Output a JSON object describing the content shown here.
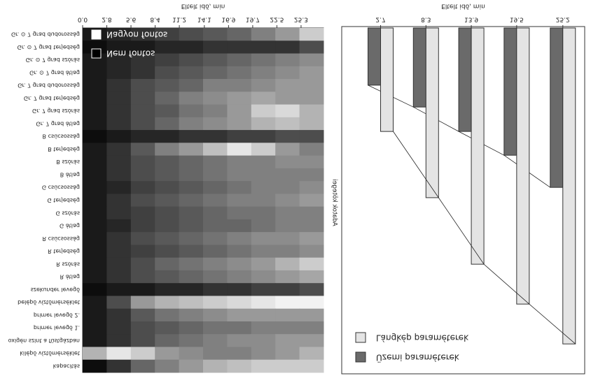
{
  "chart_data": [
    {
      "type": "heatmap",
      "xlabel": "Eltelt idő, min",
      "xlim": [
        0,
        27.9
      ],
      "xticks": [
        {
          "value": 0,
          "label": "0.0"
        },
        2.8,
        5.6,
        8.4,
        11.2,
        14.1,
        16.9,
        19.7,
        22.5,
        25.3
      ],
      "rows": [
        "Gr. ⊙ 7 grad dudorosság",
        "Gr. ⊙ 7 grad terjedség",
        "Gr. ⊙ 7 grad szórás",
        "Gr. ⊙ 7 grad átlag",
        "Gr. 7 grad dudorosság",
        "Gr. 7 grad terjedség",
        "Gr. 7 grad szórás",
        "Gr. 7 grad átlag",
        "B csúcsosság",
        "B terjedség",
        "B szórás",
        "B átlag",
        "G csúcsosság",
        "G terjedség",
        "G szórás",
        "G átlag",
        "R csúcsosság",
        "R terjedség",
        "R szórás",
        "R átlag",
        "szekunder levegő",
        "belépő víztőmérséklet",
        "primer levegő 2.",
        "primer levegő 1.",
        "oxigén szint a füstgázban",
        "kilépő víztőmérséklet",
        "kapacitás"
      ],
      "values": [
        [
          0.1,
          0.15,
          0.2,
          0.25,
          0.3,
          0.35,
          0.4,
          0.5,
          0.6,
          0.8
        ],
        [
          0.05,
          0.1,
          0.1,
          0.15,
          0.15,
          0.2,
          0.2,
          0.2,
          0.2,
          0.3
        ],
        [
          0.1,
          0.15,
          0.2,
          0.25,
          0.3,
          0.35,
          0.4,
          0.45,
          0.5,
          0.55
        ],
        [
          0.1,
          0.15,
          0.2,
          0.3,
          0.35,
          0.4,
          0.45,
          0.5,
          0.55,
          0.6
        ],
        [
          0.1,
          0.2,
          0.3,
          0.35,
          0.4,
          0.5,
          0.5,
          0.55,
          0.6,
          0.6
        ],
        [
          0.1,
          0.2,
          0.3,
          0.4,
          0.5,
          0.55,
          0.6,
          0.65,
          0.6,
          0.6
        ],
        [
          0.1,
          0.2,
          0.3,
          0.35,
          0.45,
          0.5,
          0.6,
          0.8,
          0.85,
          0.7
        ],
        [
          0.1,
          0.2,
          0.3,
          0.4,
          0.5,
          0.55,
          0.6,
          0.7,
          0.75,
          0.7
        ],
        [
          0.05,
          0.1,
          0.15,
          0.15,
          0.2,
          0.2,
          0.25,
          0.25,
          0.3,
          0.3
        ],
        [
          0.1,
          0.2,
          0.35,
          0.5,
          0.6,
          0.75,
          0.9,
          0.8,
          0.6,
          0.5
        ],
        [
          0.1,
          0.2,
          0.3,
          0.35,
          0.4,
          0.45,
          0.5,
          0.5,
          0.55,
          0.55
        ],
        [
          0.1,
          0.2,
          0.3,
          0.35,
          0.4,
          0.45,
          0.5,
          0.5,
          0.5,
          0.5
        ],
        [
          0.1,
          0.15,
          0.25,
          0.3,
          0.35,
          0.4,
          0.45,
          0.5,
          0.5,
          0.55
        ],
        [
          0.1,
          0.2,
          0.3,
          0.35,
          0.4,
          0.45,
          0.5,
          0.5,
          0.55,
          0.6
        ],
        [
          0.1,
          0.2,
          0.25,
          0.3,
          0.35,
          0.4,
          0.45,
          0.45,
          0.5,
          0.5
        ],
        [
          0.1,
          0.15,
          0.25,
          0.3,
          0.35,
          0.4,
          0.4,
          0.45,
          0.5,
          0.5
        ],
        [
          0.1,
          0.2,
          0.3,
          0.35,
          0.4,
          0.45,
          0.5,
          0.55,
          0.55,
          0.6
        ],
        [
          0.1,
          0.2,
          0.25,
          0.3,
          0.35,
          0.4,
          0.45,
          0.5,
          0.5,
          0.55
        ],
        [
          0.1,
          0.2,
          0.3,
          0.4,
          0.45,
          0.5,
          0.55,
          0.6,
          0.7,
          0.8
        ],
        [
          0.1,
          0.2,
          0.3,
          0.35,
          0.4,
          0.45,
          0.5,
          0.55,
          0.6,
          0.65
        ],
        [
          0.05,
          0.1,
          0.1,
          0.15,
          0.15,
          0.2,
          0.2,
          0.25,
          0.25,
          0.3
        ],
        [
          0.1,
          0.3,
          0.6,
          0.7,
          0.75,
          0.8,
          0.85,
          0.9,
          0.95,
          0.95
        ],
        [
          0.1,
          0.2,
          0.35,
          0.45,
          0.5,
          0.55,
          0.6,
          0.6,
          0.6,
          0.6
        ],
        [
          0.1,
          0.2,
          0.3,
          0.35,
          0.4,
          0.45,
          0.45,
          0.5,
          0.5,
          0.5
        ],
        [
          0.1,
          0.2,
          0.3,
          0.4,
          0.45,
          0.5,
          0.55,
          0.55,
          0.6,
          0.6
        ],
        [
          0.7,
          0.9,
          0.8,
          0.6,
          0.55,
          0.5,
          0.5,
          0.55,
          0.6,
          0.7
        ],
        [
          0.05,
          0.2,
          0.4,
          0.5,
          0.6,
          0.7,
          0.75,
          0.8,
          0.8,
          0.8
        ]
      ],
      "legend": [
        {
          "label": "Nagyon fontos",
          "color": "#ffffff"
        },
        {
          "label": "Nem fontos",
          "color": "#000000"
        }
      ]
    },
    {
      "type": "bar",
      "xlabel": "Eltelt idő, min",
      "ylabel": "Adatok kötegei",
      "x": [
        2.7,
        8.3,
        13.9,
        19.5,
        25.2
      ],
      "xlim": [
        -2.1,
        27.9
      ],
      "xticks": [
        2.7,
        8.3,
        13.9,
        19.5,
        25.2
      ],
      "ylim": [
        0,
        107.6
      ],
      "y_inverted": true,
      "series": [
        {
          "name": "Üzemi paraméterek",
          "color": "#6a6a6a",
          "values": [
            17.8,
            24.6,
            32.2,
            39.6,
            49.6
          ]
        },
        {
          "name": "Lángkép paraméterek",
          "color": "#e4e4e4",
          "values": [
            32.2,
            52.8,
            73.5,
            85.9,
            98.3
          ]
        }
      ]
    }
  ]
}
